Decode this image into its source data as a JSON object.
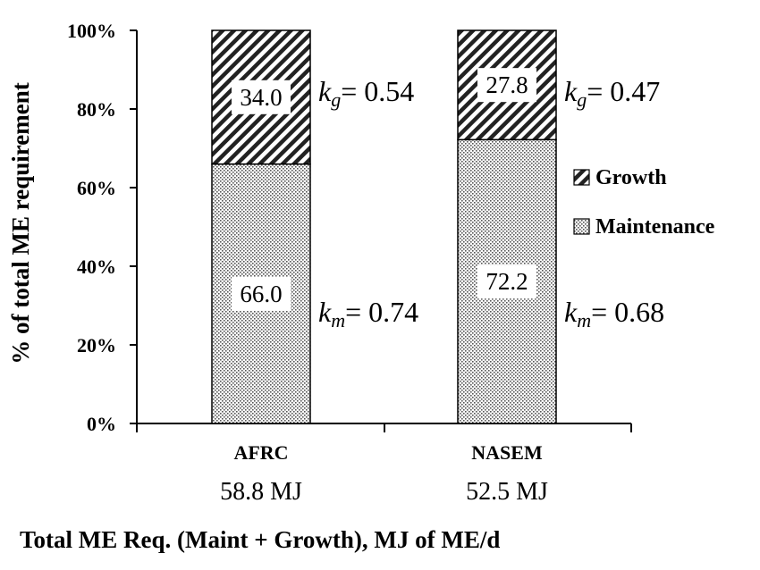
{
  "chart_data": {
    "type": "bar",
    "stacked": true,
    "percent": true,
    "categories": [
      "AFRC",
      "NASEM"
    ],
    "category_sublabels": [
      "58.8 MJ",
      "52.5 MJ"
    ],
    "series": [
      {
        "name": "Maintenance",
        "values": [
          66.0,
          72.2
        ],
        "value_labels": [
          "66.0",
          "72.2"
        ],
        "pattern": "dots"
      },
      {
        "name": "Growth",
        "values": [
          34.0,
          27.8
        ],
        "value_labels": [
          "34.0",
          "27.8"
        ],
        "pattern": "diagonal-hatch"
      }
    ],
    "xlabel": "Total ME Req. (Maint + Growth), MJ of ME/d",
    "ylabel": "% of total ME requirement",
    "ylim": [
      0,
      100
    ],
    "yticks": [
      "0%",
      "20%",
      "40%",
      "60%",
      "80%",
      "100%"
    ],
    "legend": {
      "position": "right",
      "order": [
        "Growth",
        "Maintenance"
      ]
    },
    "annotations": {
      "kg": [
        {
          "symbol": "k",
          "subscript": "g",
          "value": "= 0.54"
        },
        {
          "symbol": "k",
          "subscript": "g",
          "value": "= 0.47"
        }
      ],
      "km": [
        {
          "symbol": "k",
          "subscript": "m",
          "value": "= 0.74"
        },
        {
          "symbol": "k",
          "subscript": "m",
          "value": "= 0.68"
        }
      ]
    },
    "grid": false,
    "colors": {
      "bar_outline": "#000000",
      "fill": "#ffffff"
    }
  }
}
